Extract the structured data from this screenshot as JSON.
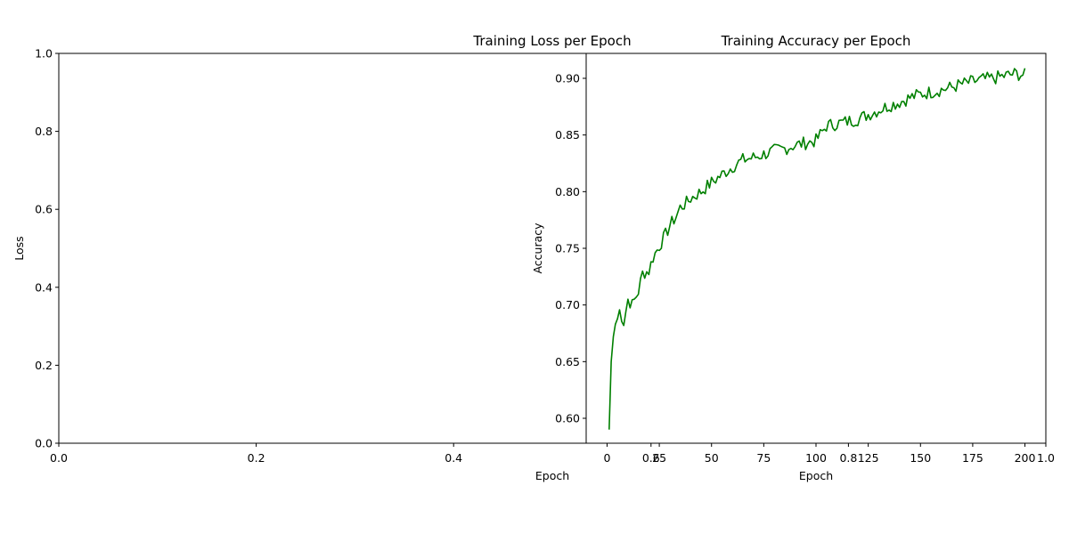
{
  "chart_data": [
    {
      "type": "line",
      "title": "Training Loss per Epoch",
      "xlabel": "Epoch",
      "ylabel": "Loss",
      "xlim": [
        0.0,
        1.0
      ],
      "ylim": [
        0.0,
        1.0
      ],
      "xticks": [
        "0.0",
        "0.2",
        "0.4"
      ],
      "yticks": [
        "0.0",
        "0.2",
        "0.4",
        "0.6",
        "0.8",
        "1.0"
      ],
      "series": []
    },
    {
      "type": "line",
      "title": "Training Accuracy per Epoch",
      "xlabel": "Epoch",
      "ylabel": "Accuracy",
      "xlim": [
        -10,
        210
      ],
      "ylim": [
        0.578,
        0.922
      ],
      "xticks": [
        "0",
        "25",
        "50",
        "75",
        "100",
        "125",
        "150",
        "175",
        "200"
      ],
      "yticks": [
        "0.60",
        "0.65",
        "0.70",
        "0.75",
        "0.80",
        "0.85",
        "0.90"
      ],
      "overlap_xticks": [
        "0.6",
        "0.8",
        "1.0"
      ],
      "series": [
        {
          "color": "#008000",
          "x": [
            1,
            2,
            3,
            4,
            5,
            6,
            8,
            10,
            12,
            15,
            17,
            20,
            22,
            25,
            28,
            30,
            33,
            35,
            38,
            40,
            45,
            50,
            55,
            60,
            65,
            70,
            75,
            80,
            85,
            90,
            95,
            100,
            105,
            110,
            115,
            120,
            125,
            130,
            135,
            140,
            145,
            150,
            155,
            160,
            165,
            170,
            175,
            180,
            185,
            190,
            195,
            200
          ],
          "y": [
            0.59,
            0.65,
            0.672,
            0.683,
            0.688,
            0.695,
            0.685,
            0.705,
            0.7,
            0.712,
            0.728,
            0.73,
            0.742,
            0.752,
            0.762,
            0.77,
            0.778,
            0.786,
            0.79,
            0.794,
            0.8,
            0.808,
            0.815,
            0.822,
            0.828,
            0.83,
            0.833,
            0.836,
            0.838,
            0.841,
            0.843,
            0.845,
            0.858,
            0.86,
            0.862,
            0.864,
            0.868,
            0.872,
            0.876,
            0.879,
            0.883,
            0.886,
            0.888,
            0.89,
            0.892,
            0.895,
            0.897,
            0.899,
            0.9,
            0.902,
            0.904,
            0.903
          ]
        }
      ]
    }
  ]
}
